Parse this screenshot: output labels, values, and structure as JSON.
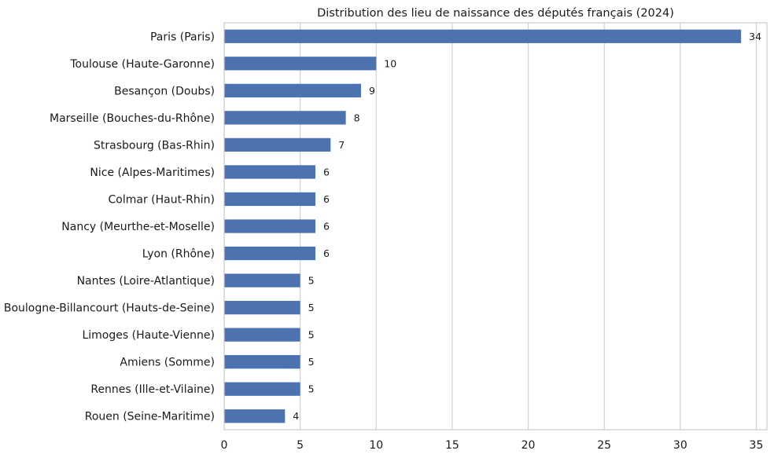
{
  "chart_data": {
    "type": "bar",
    "orientation": "horizontal",
    "title": "Distribution des lieu de naissance des députés français (2024)",
    "xlabel": "",
    "ylabel": "",
    "categories": [
      "Paris (Paris)",
      "Toulouse (Haute-Garonne)",
      "Besançon (Doubs)",
      "Marseille (Bouches-du-Rhône)",
      "Strasbourg (Bas-Rhin)",
      "Nice (Alpes-Maritimes)",
      "Colmar (Haut-Rhin)",
      "Nancy (Meurthe-et-Moselle)",
      "Lyon (Rhône)",
      "Nantes (Loire-Atlantique)",
      "Boulogne-Billancourt (Hauts-de-Seine)",
      "Limoges (Haute-Vienne)",
      "Amiens (Somme)",
      "Rennes (Ille-et-Vilaine)",
      "Rouen (Seine-Maritime)"
    ],
    "values": [
      34,
      10,
      9,
      8,
      7,
      6,
      6,
      6,
      6,
      5,
      5,
      5,
      5,
      5,
      4
    ],
    "xlim": [
      0,
      35.7
    ],
    "xticks": [
      0,
      5,
      10,
      15,
      20,
      25,
      30,
      35
    ],
    "grid": "vertical",
    "bar_color": "#4c72b0"
  }
}
